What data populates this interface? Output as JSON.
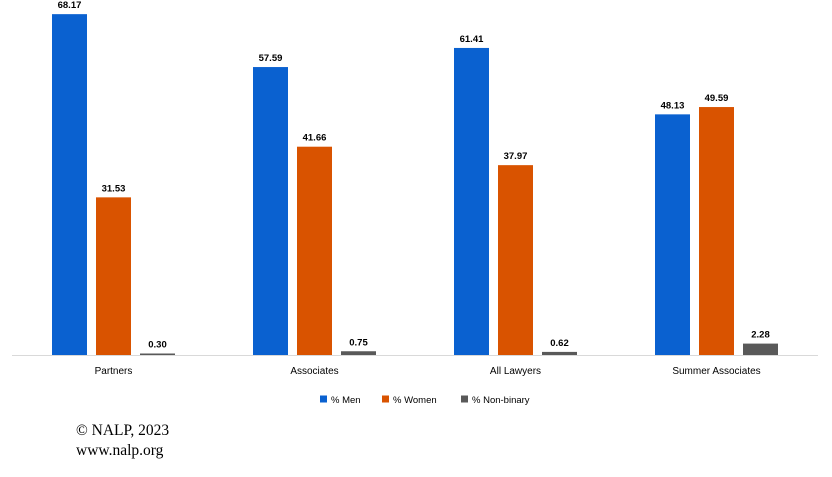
{
  "chart_data": {
    "type": "bar",
    "categories": [
      "Partners",
      "Associates",
      "All Lawyers",
      "Summer Associates"
    ],
    "series": [
      {
        "name": "% Men",
        "values": [
          68.17,
          57.59,
          61.41,
          48.13
        ],
        "color": "#0a61d0"
      },
      {
        "name": "% Women",
        "values": [
          31.53,
          41.66,
          37.97,
          49.59
        ],
        "color": "#d95300"
      },
      {
        "name": "% Non-binary",
        "values": [
          0.3,
          0.75,
          0.62,
          2.28
        ],
        "color": "#595959"
      }
    ],
    "value_labels": [
      [
        "68.17",
        "57.59",
        "61.41",
        "48.13"
      ],
      [
        "31.53",
        "41.66",
        "37.97",
        "49.59"
      ],
      [
        "0.30",
        "0.75",
        "0.62",
        "2.28"
      ]
    ],
    "ylim": [
      0,
      70
    ],
    "grid": false,
    "legend_position": "bottom"
  },
  "footer": {
    "copyright": "© NALP, 2023",
    "website": "www.nalp.org"
  }
}
